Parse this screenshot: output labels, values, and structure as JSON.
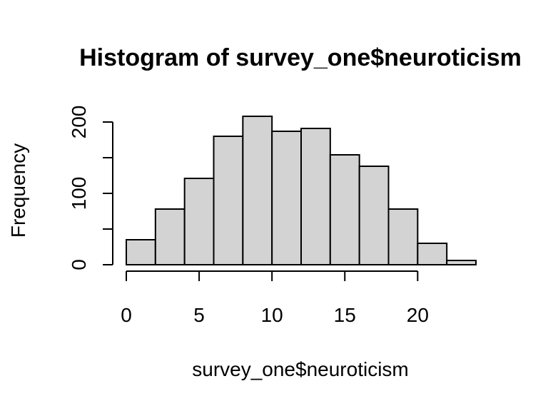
{
  "chart_data": {
    "type": "bar",
    "title": "Histogram of survey_one$neuroticism",
    "xlabel": "survey_one$neuroticism",
    "ylabel": "Frequency",
    "bin_edges": [
      0,
      2,
      4,
      6,
      8,
      10,
      12,
      14,
      16,
      18,
      20,
      22,
      24
    ],
    "values": [
      35,
      78,
      121,
      180,
      208,
      187,
      191,
      154,
      138,
      78,
      30,
      6
    ],
    "xlim": [
      0,
      24
    ],
    "ylim": [
      0,
      208
    ],
    "x_ticks": [
      0,
      5,
      10,
      15,
      20
    ],
    "x_tick_labels": [
      "0",
      "5",
      "10",
      "15",
      "20"
    ],
    "y_ticks": [
      0,
      50,
      100,
      150,
      200
    ],
    "y_tick_labels": [
      "0",
      "",
      "100",
      "",
      "200"
    ],
    "bar_color": "#d3d3d3",
    "grid": false,
    "legend": "none"
  }
}
